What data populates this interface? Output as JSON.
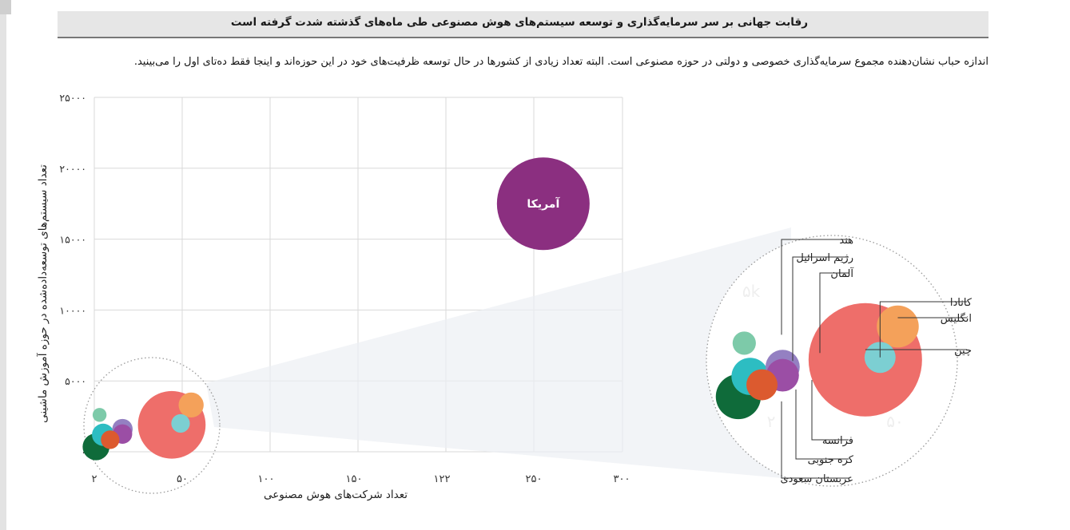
{
  "header": {
    "title": "رقابت جهانی بر سر سرمایه‌گذاری و توسعه سیستم‌های هوش مصنوعی طی ماه‌های گذشته شدت گرفته است"
  },
  "description": "اندازه حباب نشان‌دهنده مجموع سرمایه‌گذاری خصوصی و دولتی در حوزه مصنوعی است. البته تعداد زیادی از کشورها در حال توسعه ظرفیت‌های خود در این حوزه‌اند و اینجا فقط ده‌تای اول را می‌بینید.",
  "chart_data": {
    "type": "scatter",
    "title": "",
    "xlabel": "تعداد شرکت‌های هوش مصنوعی",
    "ylabel": "تعداد سیستم‌های توسعه‌داده‌شده در حوزه آموزش ماشینی",
    "x_tick_labels": [
      "۲",
      "۵۰",
      "۱۰۰",
      "۱۵۰",
      "۱۲۲",
      "۲۵۰",
      "۳۰۰"
    ],
    "y_tick_labels": [
      "۰",
      "۵۰۰۰",
      "۱۰۰۰۰",
      "۱۵۰۰۰",
      "۲۰۰۰۰",
      "۲۵۰۰۰"
    ],
    "xlim": [
      0,
      300
    ],
    "ylim": [
      0,
      25000
    ],
    "grid": true,
    "bubble_size_meaning": "total investment",
    "points": [
      {
        "name": "آمریکا",
        "x": 255,
        "y": 17500,
        "size": 10,
        "color": "#8b2f80",
        "label_inside": true
      },
      {
        "name": "چین",
        "x": 44,
        "y": 1900,
        "size": 7.3,
        "color": "#ee6e6a"
      },
      {
        "name": "انگلیس",
        "x": 55,
        "y": 3300,
        "size": 2.7,
        "color": "#f4a15a"
      },
      {
        "name": "کانادا",
        "x": 49,
        "y": 2000,
        "size": 2.0,
        "color": "#7ccfd2"
      },
      {
        "name": "آلمان",
        "x": 16,
        "y": 1600,
        "size": 2.2,
        "color": "#9480c2"
      },
      {
        "name": "فرانسه",
        "x": 16,
        "y": 1250,
        "size": 2.1,
        "color": "#9b4ea5"
      },
      {
        "name": "کره جنوبی",
        "x": 9,
        "y": 850,
        "size": 2.0,
        "color": "#dc5a2f"
      },
      {
        "name": "رژیم اسرائیل",
        "x": 5,
        "y": 1200,
        "size": 2.4,
        "color": "#2dbdc2"
      },
      {
        "name": "هند",
        "x": 3,
        "y": 2600,
        "size": 1.5,
        "color": "#7dcaa9"
      },
      {
        "name": "عربستان سعودی",
        "x": 1,
        "y": 350,
        "size": 2.9,
        "color": "#0f6b3a"
      }
    ],
    "zoom_inset": {
      "label": "zoomed view of lower-left cluster",
      "ghost_tick_labels": [
        "۵k",
        "۲۲",
        "۲",
        "۵۰"
      ]
    }
  }
}
